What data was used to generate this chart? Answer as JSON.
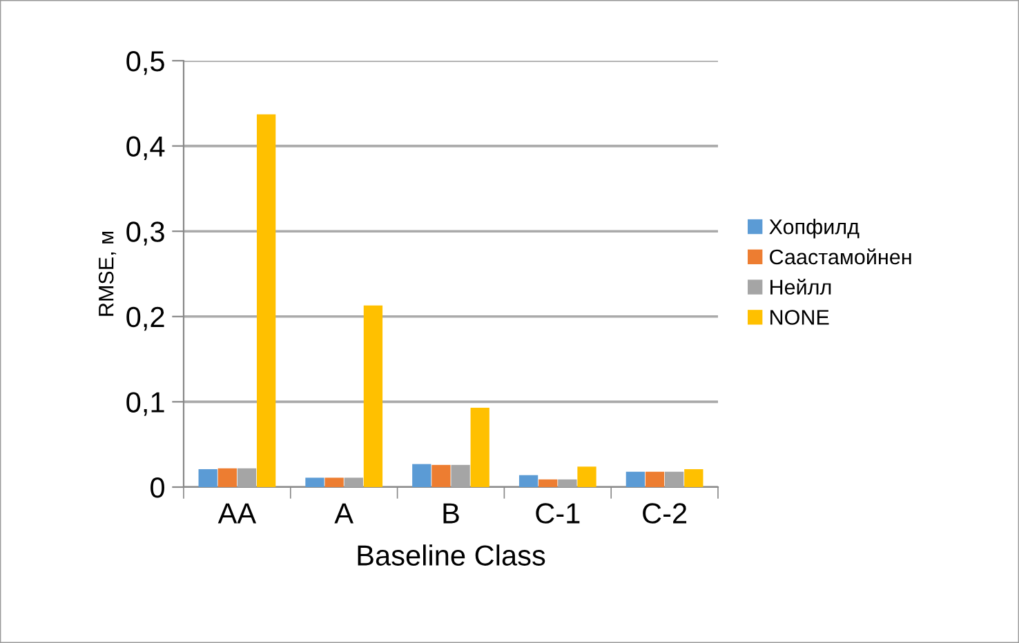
{
  "chart_data": {
    "type": "bar",
    "xlabel": "Baseline Class",
    "ylabel": "RMSE, м",
    "categories": [
      "AA",
      "A",
      "B",
      "C-1",
      "C-2"
    ],
    "series": [
      {
        "name": "Хопфилд",
        "color": "#5b9bd5",
        "values": [
          0.021,
          0.011,
          0.027,
          0.014,
          0.018
        ]
      },
      {
        "name": "Саастамойнен",
        "color": "#ed7d31",
        "values": [
          0.022,
          0.011,
          0.026,
          0.009,
          0.018
        ]
      },
      {
        "name": "Нейлл",
        "color": "#a5a5a5",
        "values": [
          0.022,
          0.011,
          0.026,
          0.009,
          0.018
        ]
      },
      {
        "name": "NONE",
        "color": "#ffc000",
        "values": [
          0.437,
          0.213,
          0.093,
          0.024,
          0.021
        ]
      }
    ],
    "ylim": [
      0,
      0.5
    ],
    "yticks": [
      0,
      {
        "value": 0.1,
        "label": "0,1"
      },
      {
        "value": 0.2,
        "label": "0,2"
      },
      {
        "value": 0.3,
        "label": "0,3"
      },
      {
        "value": 0.4,
        "label": "0,4"
      },
      {
        "value": 0.5,
        "label": "0,5"
      }
    ],
    "grid": "y",
    "legend": "right"
  }
}
